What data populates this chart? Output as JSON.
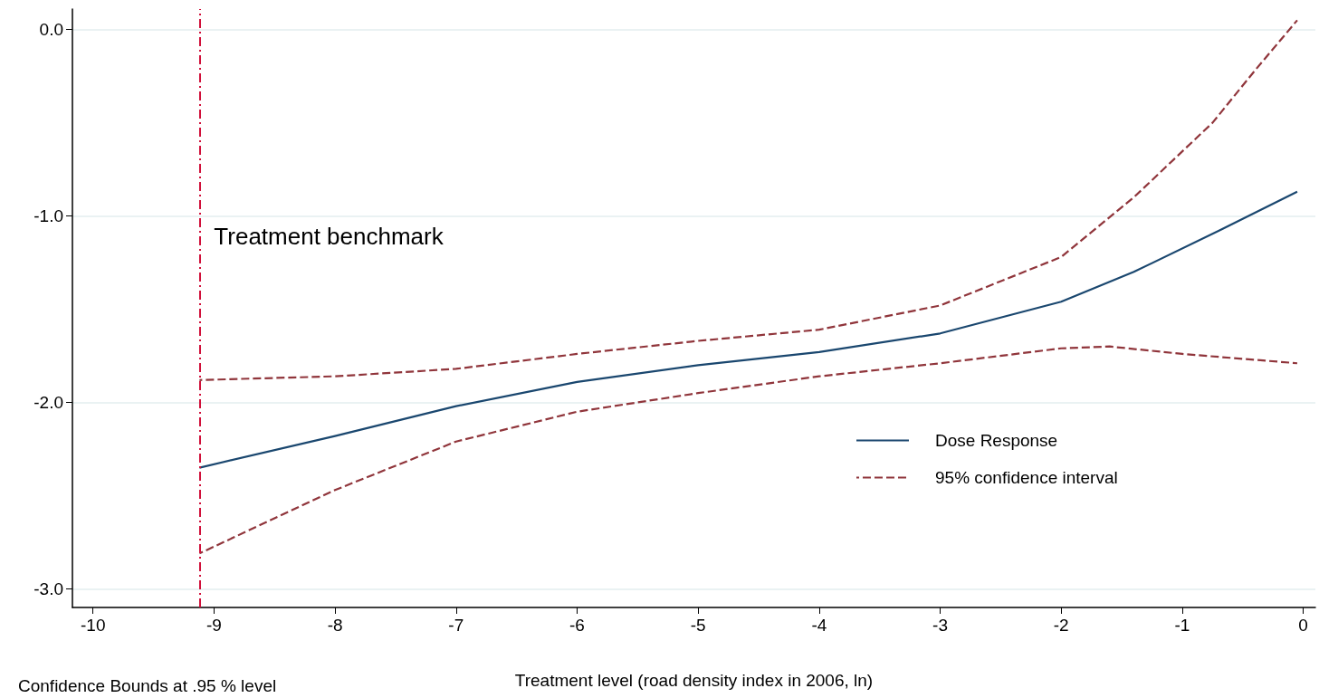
{
  "chart_data": {
    "type": "line",
    "xlabel": "Treatment level (road density index in 2006, ln)",
    "xlim": [
      -10.17,
      0.1
    ],
    "xticks": [
      -10,
      -9,
      -8,
      -7,
      -6,
      -5,
      -4,
      -3,
      -2,
      -1,
      0
    ],
    "ylim": [
      -3.1,
      0.11
    ],
    "yticks": [
      {
        "value": 0,
        "label": "0.0"
      },
      {
        "value": -1,
        "label": "-1.0"
      },
      {
        "value": -2,
        "label": "-2.0"
      },
      {
        "value": -3,
        "label": "-3.0"
      }
    ],
    "series": [
      {
        "name": "Dose Response",
        "color": "#1a476f",
        "line_style": "solid",
        "x": [
          -9.12,
          -8,
          -7,
          -6,
          -5,
          -4,
          -3,
          -2,
          -1.4,
          -0.7,
          -0.05
        ],
        "values": [
          -2.35,
          -2.18,
          -2.02,
          -1.89,
          -1.8,
          -1.73,
          -1.63,
          -1.46,
          -1.3,
          -1.08,
          -0.87
        ]
      },
      {
        "name": "95% confidence interval",
        "color": "#90353b",
        "line_style": "dashed",
        "x": [
          -9.12,
          -8,
          -7,
          -6,
          -5,
          -4,
          -3,
          -2,
          -1.4,
          -0.75,
          -0.4,
          -0.05
        ],
        "values": [
          -1.88,
          -1.86,
          -1.82,
          -1.74,
          -1.67,
          -1.61,
          -1.48,
          -1.22,
          -0.9,
          -0.5,
          -0.22,
          0.05
        ]
      },
      {
        "color": "#90353b",
        "line_style": "dashed",
        "x": [
          -9.12,
          -8,
          -7,
          -6,
          -5,
          -4,
          -3,
          -2,
          -1.6,
          -1,
          -0.05
        ],
        "values": [
          -2.81,
          -2.47,
          -2.21,
          -2.05,
          -1.95,
          -1.86,
          -1.79,
          -1.71,
          -1.7,
          -1.74,
          -1.79
        ]
      }
    ],
    "ref_lines": [
      {
        "axis": "x",
        "value": -9.12,
        "label": "Treatment benchmark",
        "color": "#d0103a",
        "line_style": "dashdot"
      }
    ],
    "annotations": [
      "Confidence Bounds at .95 % level"
    ],
    "grid": "y",
    "legend": "bottom right",
    "marker": "none"
  }
}
